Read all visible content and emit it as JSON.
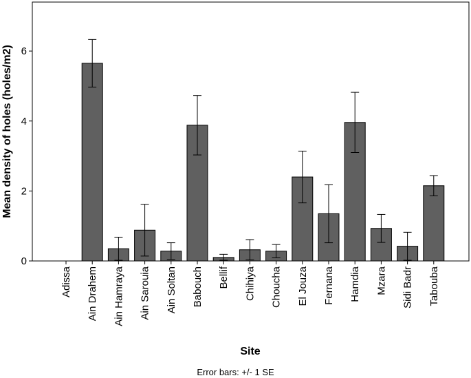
{
  "chart_data": {
    "type": "bar",
    "xlabel": "Site",
    "ylabel": "Mean density of holes (holes/m2)",
    "ylim": [
      0,
      7.4
    ],
    "yticks": [
      "0",
      "2",
      "4",
      "6"
    ],
    "ytick_values": [
      0,
      2,
      4,
      6
    ],
    "grid": false,
    "categories": [
      "Adissa",
      "Ain Drahem",
      "Ain Hamraya",
      "Ain Sarouia",
      "Ain Soltan",
      "Babouch",
      "Bellif",
      "Chihiya",
      "Choucha",
      "El Jouza",
      "Fernana",
      "Hamdia",
      "Mzara",
      "Sidi Badr",
      "Tabouba"
    ],
    "values": [
      0.0,
      5.65,
      0.35,
      0.88,
      0.28,
      3.88,
      0.1,
      0.32,
      0.28,
      2.4,
      1.35,
      3.96,
      0.93,
      0.42,
      2.15
    ],
    "error_low": [
      0.0,
      4.97,
      0.02,
      0.14,
      0.04,
      3.03,
      0.02,
      0.03,
      0.09,
      1.66,
      0.52,
      3.1,
      0.53,
      0.02,
      1.86
    ],
    "error_high": [
      0.0,
      6.33,
      0.68,
      1.62,
      0.52,
      4.73,
      0.19,
      0.61,
      0.47,
      3.14,
      2.18,
      4.82,
      1.33,
      0.82,
      2.44
    ],
    "bar_color": "#606060",
    "footnote": "Error bars: +/- 1 SE"
  }
}
